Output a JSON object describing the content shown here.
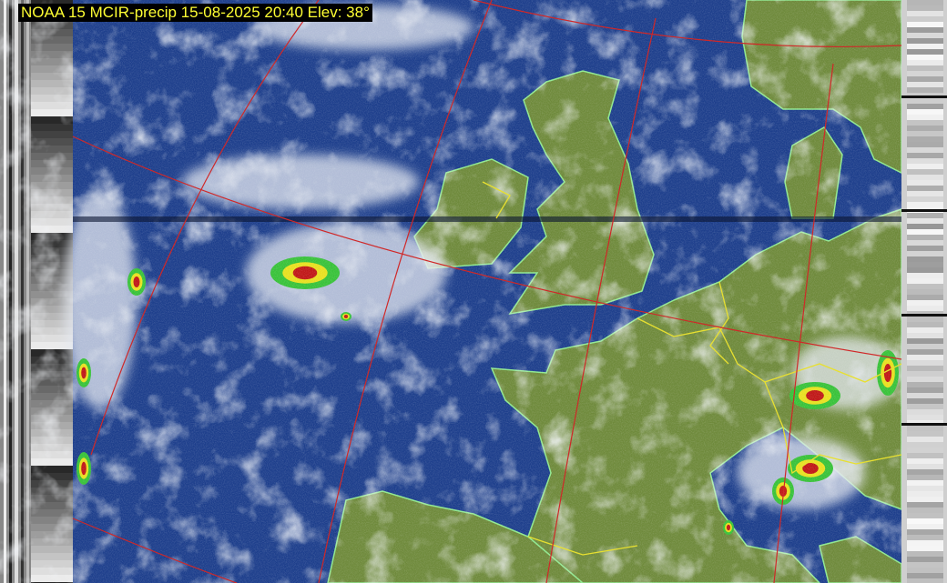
{
  "caption": "NOAA 15 MCIR-precip 15-08-2025 20:40 Elev: 38°",
  "colors": {
    "ocean": "#1e3f8c",
    "land": "#6f8a3c",
    "cloud": "#dde3ec",
    "coastline": "#8fe88f",
    "borders": "#e8e030",
    "graticule": "#d02828",
    "precip_light": "#39c23a",
    "precip_medium": "#e8e020",
    "precip_heavy": "#c01818"
  }
}
